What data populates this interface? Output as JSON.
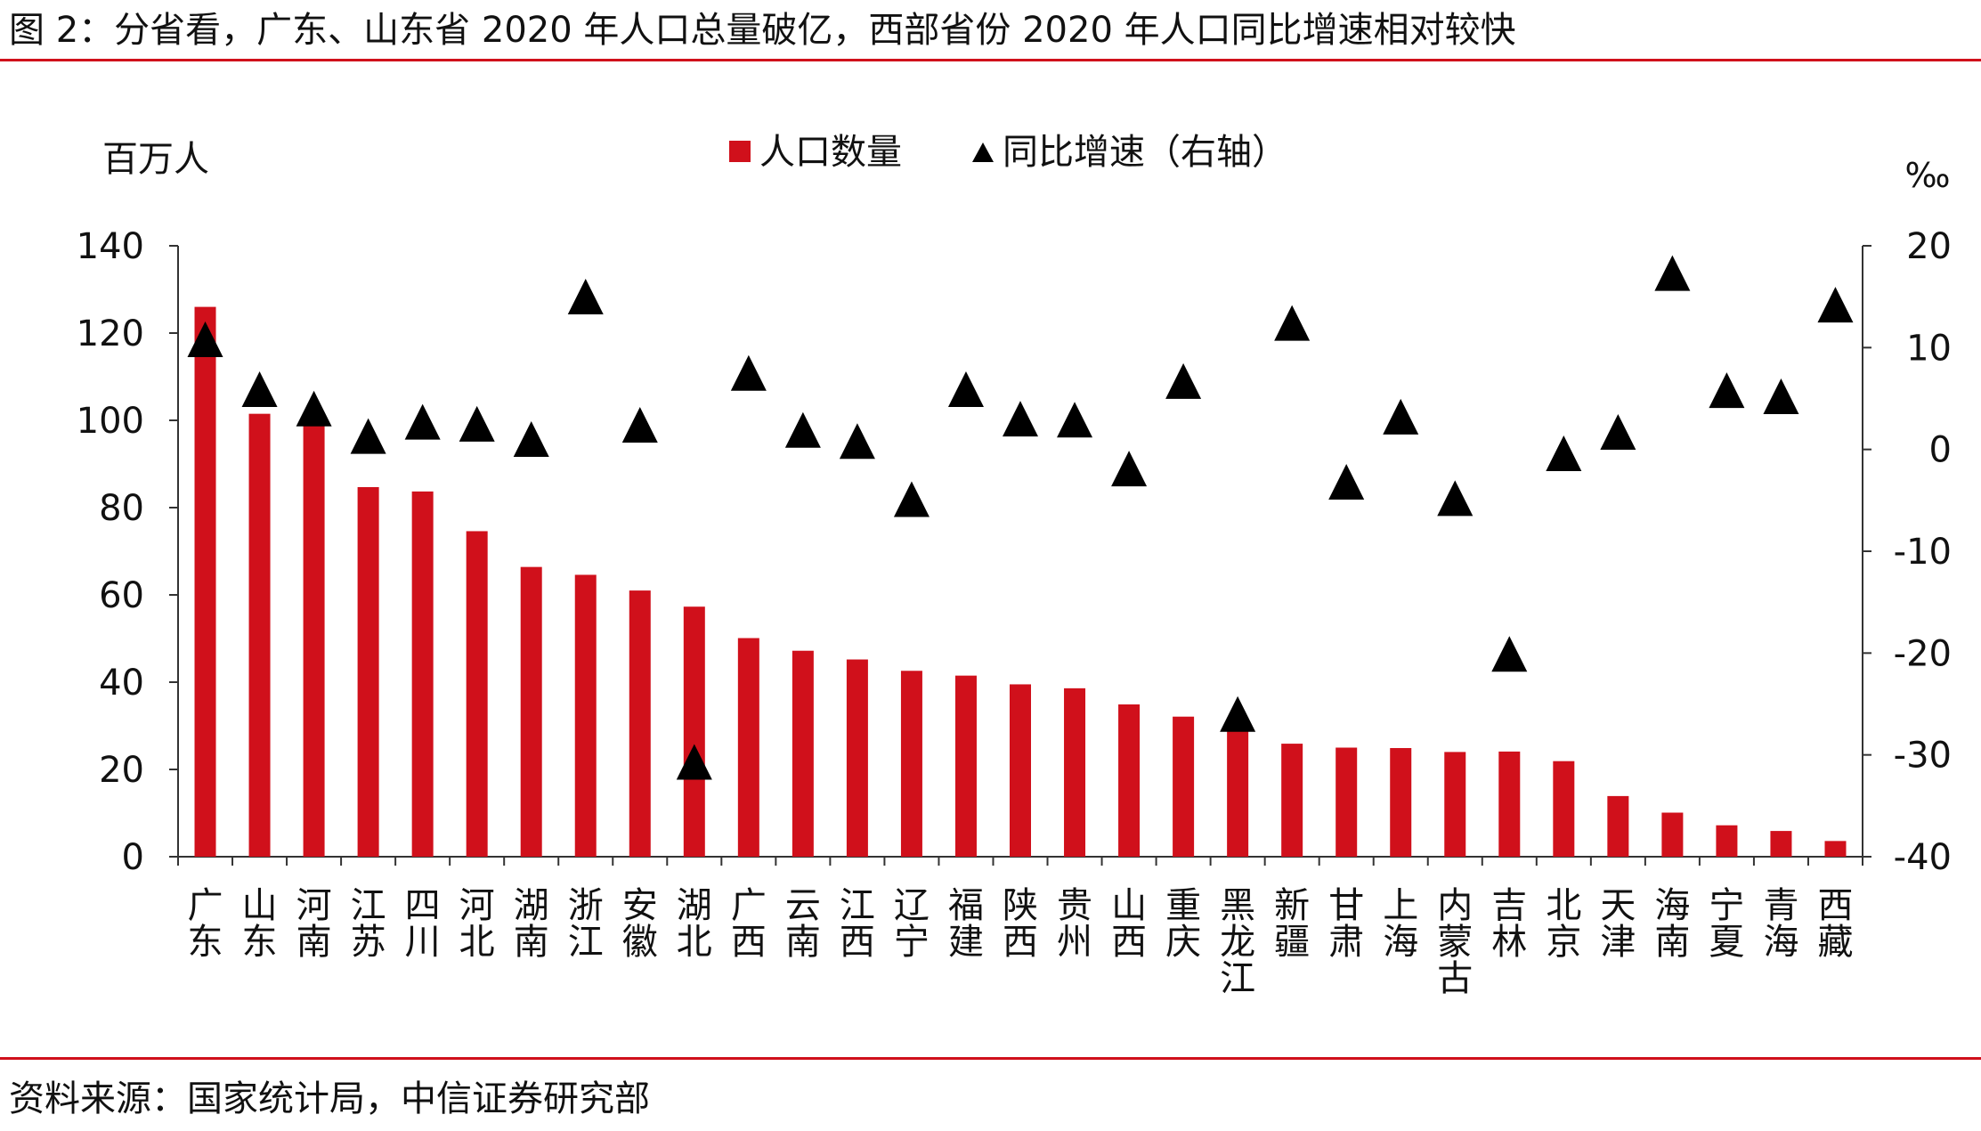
{
  "figure": {
    "title": "图 2：分省看，广东、山东省 2020 年人口总量破亿，西部省份 2020 年人口同比增速相对较快",
    "source": "资料来源：国家统计局，中信证券研究部"
  },
  "chart_data": {
    "type": "bar",
    "categories": [
      "广东",
      "山东",
      "河南",
      "江苏",
      "四川",
      "河北",
      "湖南",
      "浙江",
      "安徽",
      "湖北",
      "广西",
      "云南",
      "江西",
      "辽宁",
      "福建",
      "陕西",
      "贵州",
      "山西",
      "重庆",
      "黑龙江",
      "新疆",
      "甘肃",
      "上海",
      "内蒙古",
      "吉林",
      "北京",
      "天津",
      "海南",
      "宁夏",
      "青海",
      "西藏"
    ],
    "series": [
      {
        "name": "人口数量",
        "type": "bar",
        "axis": "left",
        "color": "#d0101b",
        "values": [
          126.0,
          101.5,
          99.4,
          84.7,
          83.7,
          74.6,
          66.4,
          64.6,
          61.0,
          57.3,
          50.1,
          47.2,
          45.2,
          42.6,
          41.5,
          39.5,
          38.6,
          34.9,
          32.1,
          31.9,
          25.9,
          25.0,
          24.9,
          24.0,
          24.1,
          21.9,
          13.9,
          10.1,
          7.2,
          5.9,
          3.6
        ]
      },
      {
        "name": "同比增速（右轴）",
        "type": "scatter",
        "marker": "triangle",
        "axis": "right",
        "color": "#000000",
        "values": [
          10.4,
          5.5,
          3.6,
          0.9,
          2.3,
          2.1,
          0.6,
          14.6,
          2.0,
          -31.1,
          7.1,
          1.5,
          0.4,
          -5.3,
          5.5,
          2.6,
          2.5,
          -2.3,
          6.3,
          -26.4,
          12.0,
          -3.6,
          2.8,
          -5.2,
          -20.5,
          -0.8,
          1.3,
          16.9,
          5.4,
          4.8,
          13.8
        ]
      }
    ],
    "left_axis": {
      "label": "百万人",
      "min": 0,
      "max": 140,
      "ticks": [
        0,
        20,
        40,
        60,
        80,
        100,
        120,
        140
      ]
    },
    "right_axis": {
      "label": "‰",
      "min": -40,
      "max": 20,
      "ticks": [
        -40,
        -30,
        -20,
        -10,
        0,
        10,
        20
      ]
    },
    "legend_position": "top-center",
    "grid": false
  }
}
